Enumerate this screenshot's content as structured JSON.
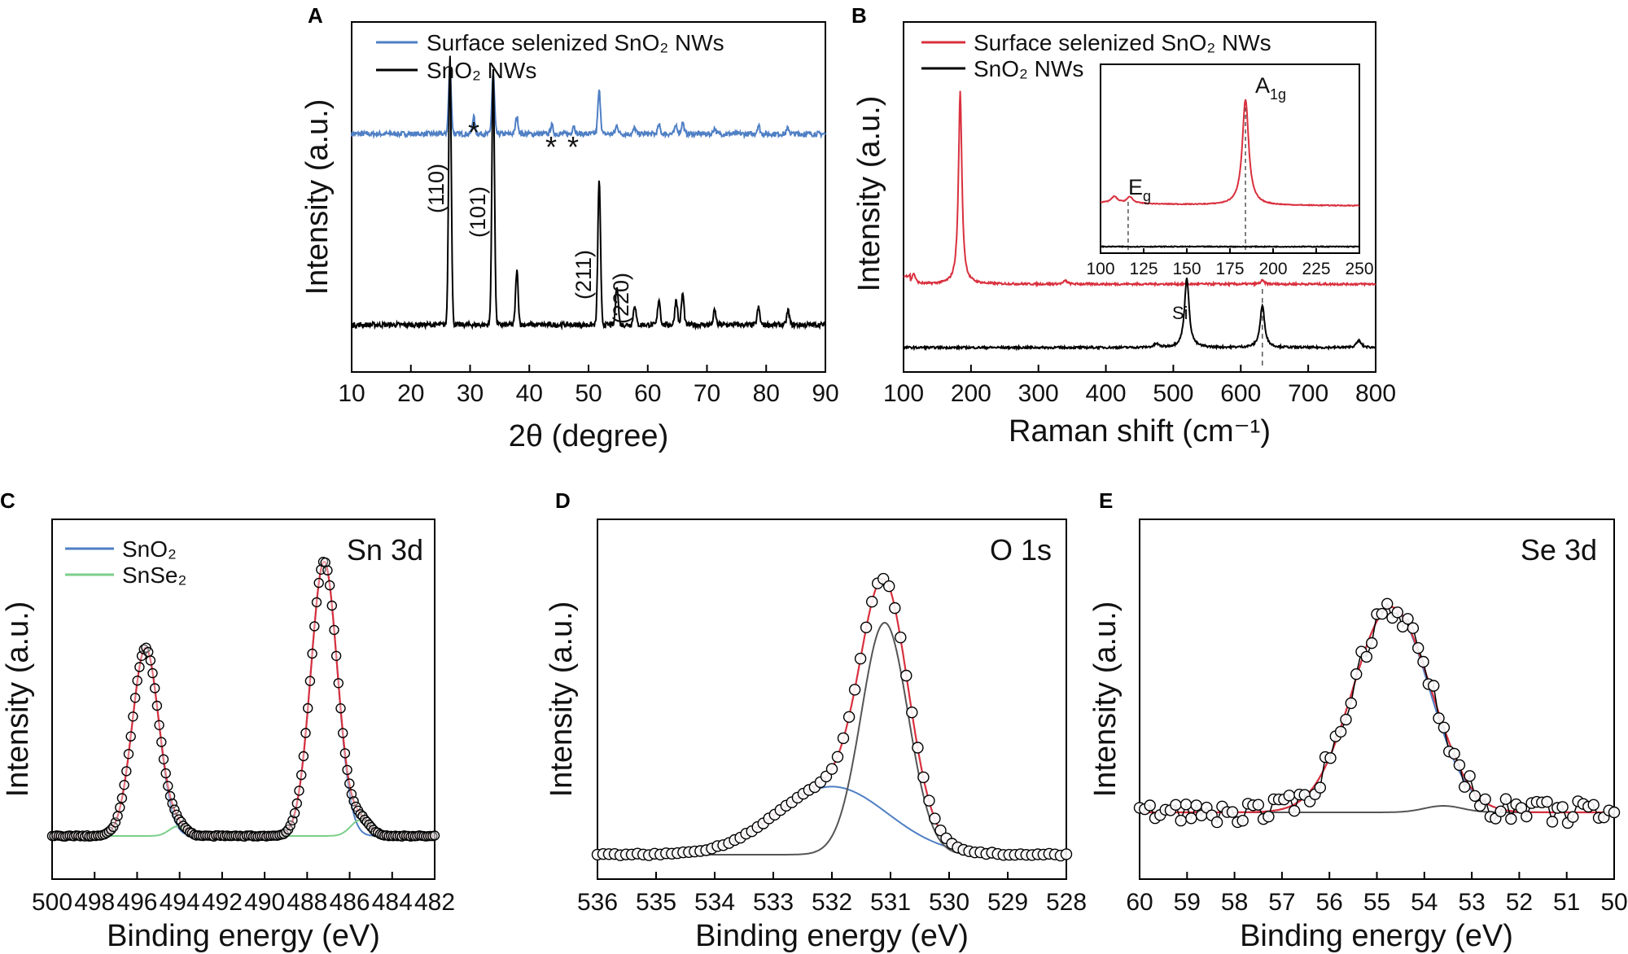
{
  "chart_data": [
    {
      "panel": "A",
      "type": "line",
      "xlabel": "2θ (degree)",
      "ylabel": "Intensity (a.u.)",
      "xlim": [
        10,
        90
      ],
      "xticks": [
        10,
        20,
        30,
        40,
        50,
        60,
        70,
        80,
        90
      ],
      "legend_position": "top-left",
      "series": [
        {
          "name": "Surface selenized SnO₂ NWs",
          "color": "#4f7fc4",
          "baseline": 0.72,
          "peaks": [
            [
              26.6,
              0.23
            ],
            [
              30.6,
              0.06
            ],
            [
              33.9,
              0.21
            ],
            [
              37.9,
              0.06
            ],
            [
              43.8,
              0.03
            ],
            [
              47.5,
              0.03
            ],
            [
              51.8,
              0.15
            ],
            [
              54.8,
              0.03
            ],
            [
              57.8,
              0.02
            ],
            [
              61.9,
              0.03
            ],
            [
              64.8,
              0.03
            ],
            [
              65.9,
              0.04
            ],
            [
              71.3,
              0.02
            ],
            [
              78.7,
              0.03
            ],
            [
              83.7,
              0.02
            ]
          ]
        },
        {
          "name": "SnO₂ NWs",
          "color": "#000000",
          "baseline": 0.06,
          "peaks": [
            [
              26.6,
              0.95
            ],
            [
              33.9,
              0.9
            ],
            [
              37.9,
              0.19
            ],
            [
              51.8,
              0.51
            ],
            [
              54.8,
              0.14
            ],
            [
              57.8,
              0.07
            ],
            [
              61.9,
              0.09
            ],
            [
              64.8,
              0.09
            ],
            [
              65.9,
              0.11
            ],
            [
              71.3,
              0.05
            ],
            [
              78.7,
              0.06
            ],
            [
              83.7,
              0.05
            ]
          ]
        }
      ],
      "annotations": [
        {
          "text": "(110)",
          "x": 24.5
        },
        {
          "text": "(101)",
          "x": 31.8
        },
        {
          "text": "(211)",
          "x": 49.8
        },
        {
          "text": "(220)",
          "x": 53.8
        },
        {
          "text": "*",
          "x": 30.6
        },
        {
          "text": "*",
          "x": 43.8
        },
        {
          "text": "*",
          "x": 47.5
        }
      ]
    },
    {
      "panel": "B",
      "type": "line",
      "xlabel": "Raman shift (cm⁻¹)",
      "ylabel": "Intensity (a.u.)",
      "xlim": [
        100,
        800
      ],
      "xticks": [
        100,
        200,
        300,
        400,
        500,
        600,
        700,
        800
      ],
      "legend_position": "top-left",
      "series": [
        {
          "name": "Surface selenized SnO₂ NWs",
          "color": "#d9303e",
          "baseline": 0.35,
          "peaks": [
            [
              115,
              0.03
            ],
            [
              184,
              0.55
            ],
            [
              340,
              0.01
            ],
            [
              632,
              0.01
            ]
          ]
        },
        {
          "name": "SnO₂ NWs",
          "color": "#000000",
          "baseline": 0.05,
          "peaks": [
            [
              475,
              0.01
            ],
            [
              520,
              0.2
            ],
            [
              632,
              0.12
            ],
            [
              775,
              0.02
            ]
          ]
        }
      ],
      "annotations": [
        {
          "text": "Si",
          "x": 520
        }
      ],
      "inset": {
        "xlim": [
          100,
          250
        ],
        "xticks": [
          100,
          125,
          150,
          175,
          200,
          225,
          250
        ],
        "labels": [
          "E",
          "g",
          "A",
          "1g"
        ],
        "series": [
          {
            "color": "#d9303e",
            "baseline": 0.42,
            "peaks": [
              [
                108,
                0.03
              ],
              [
                117,
                0.03
              ],
              [
                184,
                0.5
              ]
            ]
          },
          {
            "color": "#000000",
            "baseline": 0.05,
            "peaks": []
          }
        ],
        "dashed_lines": [
          116,
          184
        ]
      }
    },
    {
      "panel": "C",
      "type": "scatter",
      "annotation": "Sn 3d",
      "xlabel": "Binding energy (eV)",
      "ylabel": "Intensity (a.u.)",
      "xlim": [
        500,
        482
      ],
      "xticks": [
        500,
        498,
        496,
        494,
        492,
        490,
        488,
        486,
        484,
        482
      ],
      "legend_position": "top-left",
      "series": [
        {
          "name": "SnO₂",
          "color": "#4f7fc4",
          "peaks": [
            [
              495.6,
              0.59,
              0.62
            ],
            [
              487.2,
              0.86,
              0.62
            ]
          ]
        },
        {
          "name": "SnSe₂",
          "color": "#7ccf8a",
          "peaks": [
            [
              494.1,
              0.03,
              0.4
            ],
            [
              485.5,
              0.05,
              0.45
            ]
          ]
        }
      ]
    },
    {
      "panel": "D",
      "type": "scatter",
      "annotation": "O 1s",
      "xlabel": "Binding energy (eV)",
      "ylabel": "Intensity (a.u.)",
      "xlim": [
        536,
        528
      ],
      "xticks": [
        536,
        535,
        534,
        533,
        532,
        531,
        530,
        529,
        528
      ],
      "series": [
        {
          "name": "",
          "color": "#4f7fc4",
          "peaks": [
            [
              532.0,
              0.22,
              0.95
            ]
          ]
        },
        {
          "name": "",
          "color": "#555555",
          "peaks": [
            [
              531.1,
              0.75,
              0.4
            ]
          ]
        }
      ]
    },
    {
      "panel": "E",
      "type": "scatter",
      "annotation": "Se 3d",
      "xlabel": "Binding energy (eV)",
      "ylabel": "Intensity (a.u.)",
      "xlim": [
        60,
        50
      ],
      "xticks": [
        60,
        59,
        58,
        57,
        56,
        55,
        54,
        53,
        52,
        51,
        50
      ],
      "series": [
        {
          "name": "",
          "color": "#4f7fc4",
          "peaks": [
            [
              54.7,
              0.63,
              0.8
            ]
          ]
        },
        {
          "name": "",
          "color": "#555555",
          "peaks": [
            [
              53.6,
              0.02,
              0.4
            ]
          ]
        }
      ]
    }
  ]
}
